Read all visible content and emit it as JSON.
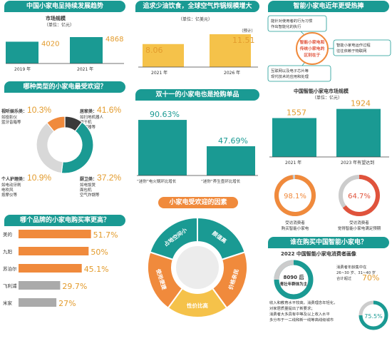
{
  "col1": {
    "banner1": "中国小家电呈持续发展趋势",
    "market_title": "市场规模",
    "market_unit": "（单位：亿元）",
    "banner2": "哪种类型的小家电最受欢迎？",
    "cat_tl_name": "视听娱乐类：",
    "cat_tl_value": "10.3%",
    "cat_tl_desc": [
      "如投影仪",
      "蓝牙音箱等"
    ],
    "cat_tr_name": "居家类：",
    "cat_tr_value": "41.6%",
    "cat_tr_desc": [
      "如扫地机器人",
      "烘干机",
      "加湿器等"
    ],
    "cat_bl_name": "个人护理类：",
    "cat_bl_value": "10.9%",
    "cat_bl_desc": [
      "如电动牙刷",
      "电吹风",
      "按摩仪等"
    ],
    "cat_br_name": "厨卫类：",
    "cat_br_value": "37.2%",
    "cat_br_desc": [
      "如电饭煲",
      "面包机",
      "空气炸锅等"
    ],
    "banner3": "哪个品牌的小家电购买率更高？"
  },
  "col2": {
    "banner1": "追求少油饮食，全球空气炸锅规模增大",
    "air_unit": "（单位：亿美元）",
    "air_note": "（预计）",
    "banner2": "双十一的小家电也是抢购单品",
    "banner3": "小家电受欢迎的因素"
  },
  "col3": {
    "banner1": "智能小家电近年更受热捧",
    "bubble_center": [
      "智能小家电和",
      "传统小家电的",
      "区别在于"
    ],
    "bubble_tl": [
      "能针对使用者的行为习惯",
      "作出智能化的执行"
    ],
    "bubble_r": [
      "智能小家电运作过程",
      "往往依赖于物联网"
    ],
    "bubble_bl": [
      "互联网以及电子芯片等",
      "现代技术的应用和处理"
    ],
    "market_title": "中国智能小家电市场规模",
    "market_unit": "（单位：亿元）",
    "donut1_value": "98.1%",
    "donut1_label": [
      "受访消费者",
      "购买智能小家电"
    ],
    "donut2_value": "64.7%",
    "donut2_label": [
      "受访消费者",
      "觉得智能小家电满足预期"
    ],
    "banner2": "谁在购买中国智能小家电？",
    "portrait_title": "2022 中国智能小家电消费者画像",
    "ring_text1": "8090 后",
    "ring_text2": "青壮年群体为主",
    "age_text": [
      "消费者年龄集中在",
      "26~30 岁、31~40 岁",
      "合计超过"
    ],
    "age_value": "70%",
    "income_text": [
      "收入和教育水平较高，消费理念年轻化，",
      "对家居质量提出了新要求；",
      "消费者大多具有中等及以上收入水平",
      "多分布于一二线和新一线等高线级城市"
    ],
    "bottom_value": "75.5%"
  },
  "chart_data": [
    {
      "type": "bar",
      "categories": [
        "2019 年",
        "2021 年"
      ],
      "values": [
        4020,
        4868
      ],
      "title": "市场规模",
      "ylabel": "（单位：亿元）",
      "colors": [
        "#1a9a93",
        "#1a9a93"
      ]
    },
    {
      "type": "pie",
      "labels": [
        "视听娱乐类",
        "居家类",
        "厨卫类",
        "个人护理类"
      ],
      "values": [
        10.3,
        41.6,
        37.2,
        10.9
      ],
      "colors": [
        "#3a3a3a",
        "#1a9a93",
        "#d8d8d8",
        "#f08a3c"
      ]
    },
    {
      "type": "bar",
      "orientation": "horizontal",
      "categories": [
        "美的",
        "九阳",
        "苏泊尔",
        "飞利浦",
        "米家"
      ],
      "values": [
        51.7,
        50,
        45.1,
        29.7,
        27
      ],
      "value_labels": [
        "51.7%",
        "50%",
        "45.1%",
        "29.7%",
        "27%"
      ],
      "colors": [
        "#f08a3c",
        "#f08a3c",
        "#f08a3c",
        "#aaaaaa",
        "#aaaaaa"
      ]
    },
    {
      "type": "bar",
      "categories": [
        "2021 年",
        "2026 年"
      ],
      "values": [
        8.06,
        11.51
      ],
      "ylabel": "（单位：亿美元）",
      "colors": [
        "#f5c24a",
        "#f5c24a"
      ]
    },
    {
      "type": "bar",
      "categories": [
        "“迷你”电火锅环比增长",
        "“迷你”养生壶环比增长"
      ],
      "values": [
        90.63,
        47.69
      ],
      "value_labels": [
        "90.63%",
        "47.69%"
      ],
      "colors": [
        "#1a9a93",
        "#1a9a93"
      ]
    },
    {
      "type": "pie",
      "labels": [
        "颜值高",
        "价格亲民",
        "性价比高",
        "使用便捷",
        "占地空间小"
      ],
      "values": [
        20,
        20,
        20,
        20,
        20
      ],
      "colors": [
        "#1a9a93",
        "#f08a3c",
        "#f5c24a",
        "#f08a3c",
        "#1a9a93"
      ]
    },
    {
      "type": "bar",
      "categories": [
        "2021 年",
        "2023 年有望达到"
      ],
      "values": [
        1557,
        1924
      ],
      "title": "中国智能小家电市场规模",
      "ylabel": "（单位：亿元）",
      "colors": [
        "#1a9a93",
        "#1a9a93"
      ]
    }
  ]
}
